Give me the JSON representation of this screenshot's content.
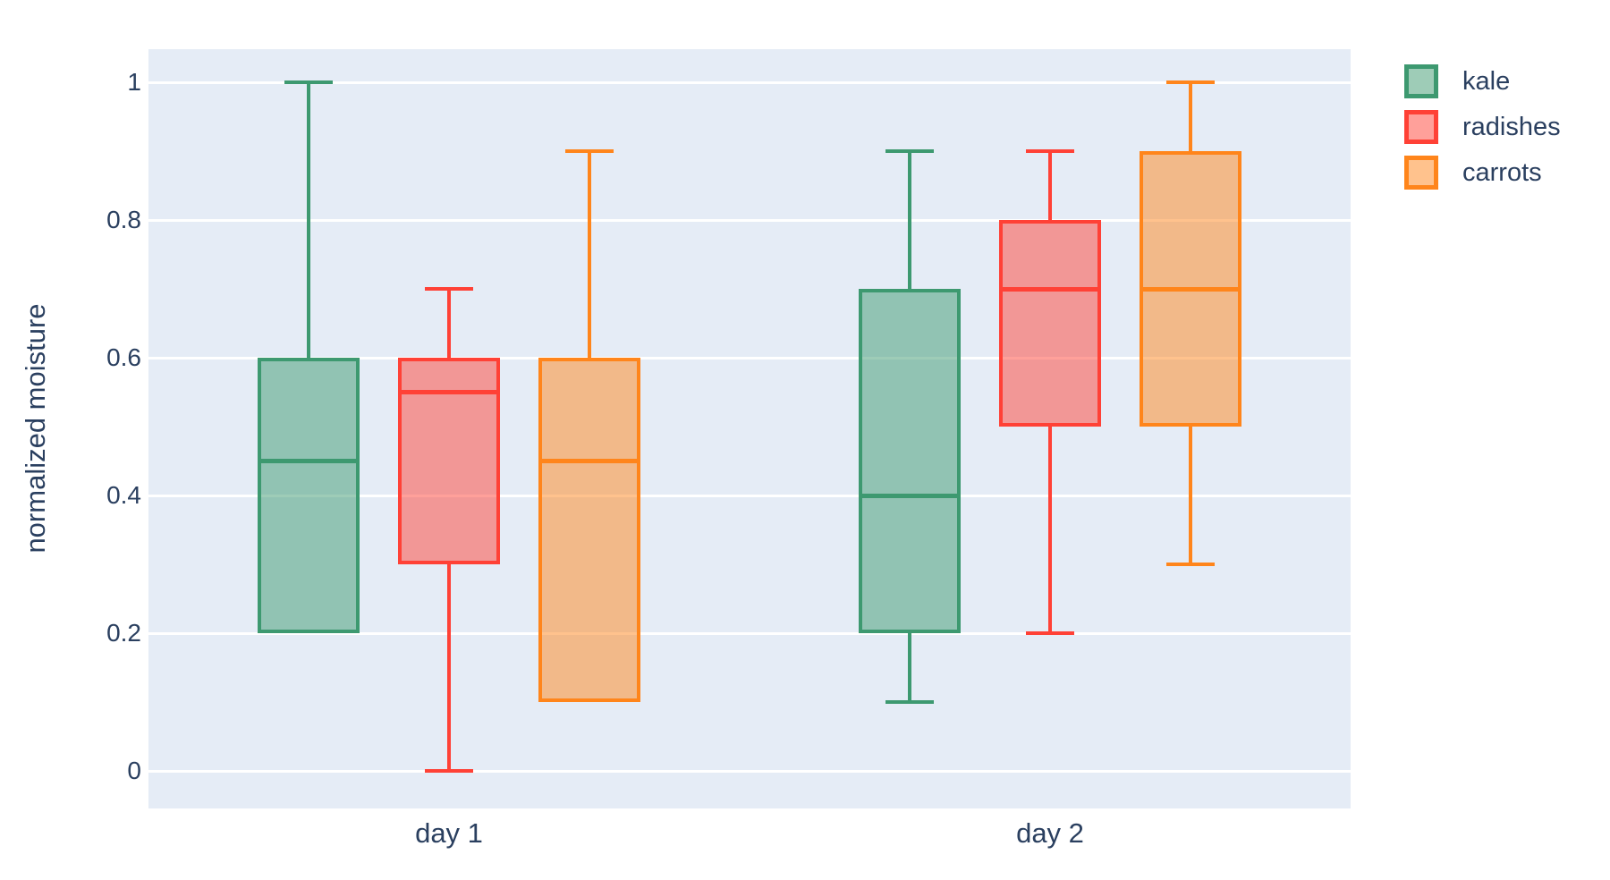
{
  "chart_data": {
    "type": "box",
    "title": "",
    "xlabel": "",
    "ylabel": "normalized moisture",
    "categories": [
      "day 1",
      "day 2"
    ],
    "yticks": [
      0,
      0.2,
      0.4,
      0.6,
      0.8,
      1
    ],
    "ytick_labels": [
      "0",
      "0.2",
      "0.4",
      "0.6",
      "0.8",
      "1"
    ],
    "ylim": [
      -0.055,
      1.05
    ],
    "grid": true,
    "boxmode": "group",
    "legend_position": "top-right",
    "series": [
      {
        "name": "kale",
        "line_color": "#3D9970",
        "fill_color": "rgba(61,153,112,0.5)",
        "boxes": [
          {
            "category": "day 1",
            "min": 0.2,
            "q1": 0.2,
            "median": 0.45,
            "q3": 0.6,
            "max": 1.0
          },
          {
            "category": "day 2",
            "min": 0.1,
            "q1": 0.2,
            "median": 0.4,
            "q3": 0.7,
            "max": 0.9
          }
        ]
      },
      {
        "name": "radishes",
        "line_color": "#FF4136",
        "fill_color": "rgba(255,65,54,0.5)",
        "boxes": [
          {
            "category": "day 1",
            "min": 0.0,
            "q1": 0.3,
            "median": 0.55,
            "q3": 0.6,
            "max": 0.7
          },
          {
            "category": "day 2",
            "min": 0.2,
            "q1": 0.5,
            "median": 0.7,
            "q3": 0.8,
            "max": 0.9
          }
        ]
      },
      {
        "name": "carrots",
        "line_color": "#FF851B",
        "fill_color": "rgba(255,133,27,0.5)",
        "boxes": [
          {
            "category": "day 1",
            "min": 0.1,
            "q1": 0.1,
            "median": 0.45,
            "q3": 0.6,
            "max": 0.9
          },
          {
            "category": "day 2",
            "min": 0.3,
            "q1": 0.5,
            "median": 0.7,
            "q3": 0.9,
            "max": 1.0
          }
        ]
      }
    ],
    "colors": {
      "plot_background": "#E5ECF6",
      "gridline": "#FFFFFF",
      "text": "#2A3F5F",
      "page_background": "#FFFFFF"
    }
  }
}
